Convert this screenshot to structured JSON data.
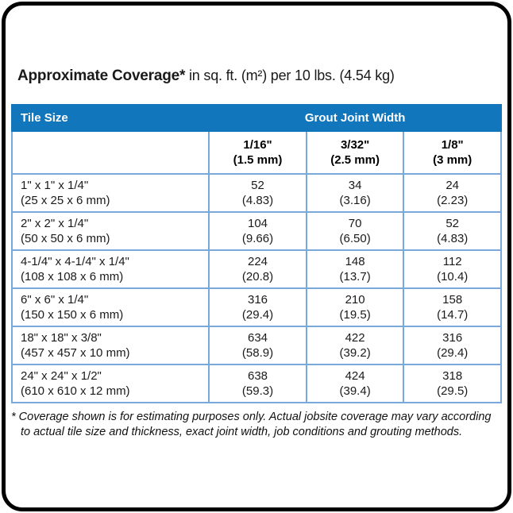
{
  "title": {
    "bold": "Approximate Coverage*",
    "rest": " in sq. ft. (m²) per 10 lbs. (4.54 kg)"
  },
  "table": {
    "header": {
      "tile_size": "Tile Size",
      "grout_joint_width": "Grout Joint Width"
    },
    "grout_columns": [
      {
        "fraction": "1/16\"",
        "metric": "(1.5 mm)"
      },
      {
        "fraction": "3/32\"",
        "metric": "(2.5 mm)"
      },
      {
        "fraction": "1/8\"",
        "metric": "(3 mm)"
      }
    ],
    "rows": [
      {
        "size_in": "1\" x 1\" x 1/4\"",
        "size_mm": "(25 x 25 x 6 mm)",
        "values": [
          {
            "sqft": "52",
            "m2": "(4.83)"
          },
          {
            "sqft": "34",
            "m2": "(3.16)"
          },
          {
            "sqft": "24",
            "m2": "(2.23)"
          }
        ]
      },
      {
        "size_in": "2\" x 2\" x 1/4\"",
        "size_mm": "(50 x 50 x 6 mm)",
        "values": [
          {
            "sqft": "104",
            "m2": "(9.66)"
          },
          {
            "sqft": "70",
            "m2": "(6.50)"
          },
          {
            "sqft": "52",
            "m2": "(4.83)"
          }
        ]
      },
      {
        "size_in": "4-1/4\" x 4-1/4\" x 1/4\"",
        "size_mm": "(108 x 108 x 6 mm)",
        "values": [
          {
            "sqft": "224",
            "m2": "(20.8)"
          },
          {
            "sqft": "148",
            "m2": "(13.7)"
          },
          {
            "sqft": "112",
            "m2": "(10.4)"
          }
        ]
      },
      {
        "size_in": "6\" x 6\" x 1/4\"",
        "size_mm": "(150 x 150 x 6 mm)",
        "values": [
          {
            "sqft": "316",
            "m2": "(29.4)"
          },
          {
            "sqft": "210",
            "m2": "(19.5)"
          },
          {
            "sqft": "158",
            "m2": "(14.7)"
          }
        ]
      },
      {
        "size_in": "18\" x 18\" x 3/8\"",
        "size_mm": "(457 x 457 x 10 mm)",
        "values": [
          {
            "sqft": "634",
            "m2": "(58.9)"
          },
          {
            "sqft": "422",
            "m2": "(39.2)"
          },
          {
            "sqft": "316",
            "m2": "(29.4)"
          }
        ]
      },
      {
        "size_in": "24\" x 24\" x 1/2\"",
        "size_mm": "(610 x 610 x 12 mm)",
        "values": [
          {
            "sqft": "638",
            "m2": "(59.3)"
          },
          {
            "sqft": "424",
            "m2": "(39.4)"
          },
          {
            "sqft": "318",
            "m2": "(29.5)"
          }
        ]
      }
    ]
  },
  "footnote": "* Coverage shown is for estimating purposes only. Actual jobsite coverage may vary according to actual tile size and thickness, exact joint width, job conditions and grouting methods.",
  "colors": {
    "header_blue": "#1276bd",
    "grid_blue": "#79a9da",
    "outer_border_blue": "#3f7fc1",
    "frame_black": "#000000"
  }
}
